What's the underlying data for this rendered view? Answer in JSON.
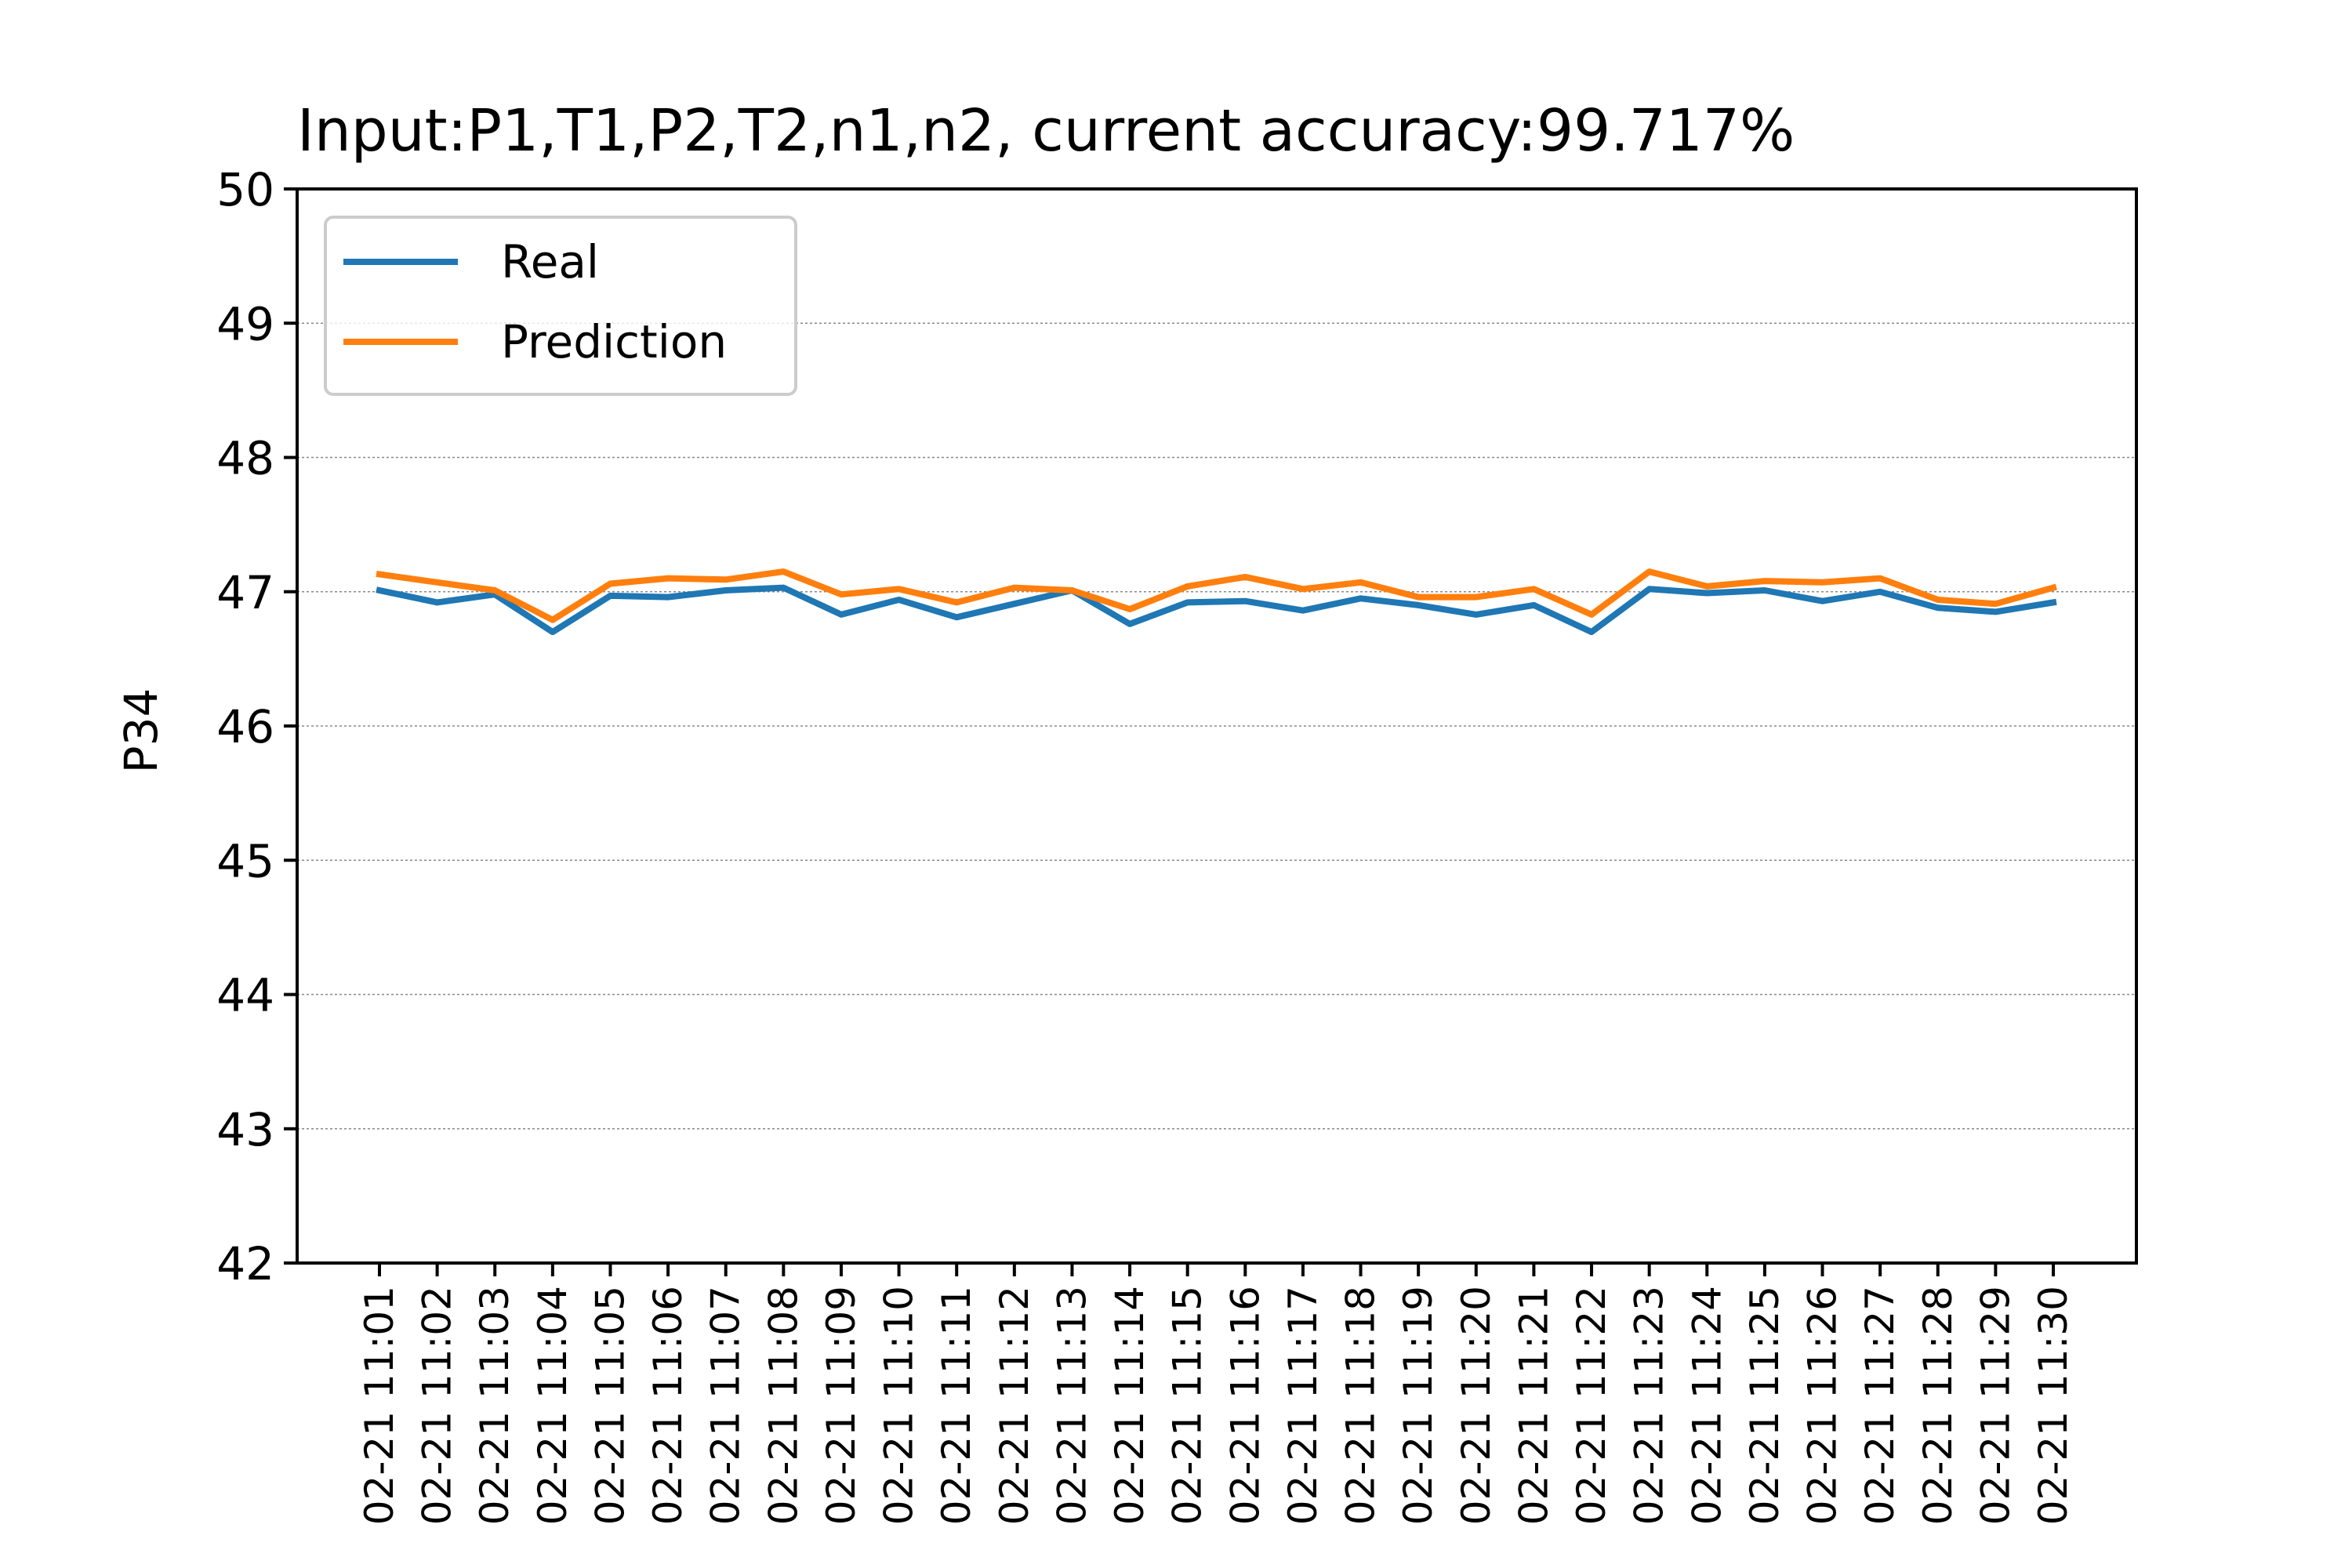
{
  "chart_data": {
    "type": "line",
    "title": "Input:P1,T1,P2,T2,n1,n2, current accuracy:99.717%",
    "xlabel": "",
    "ylabel": "P34",
    "ylim": [
      42,
      50
    ],
    "yticks": [
      "42",
      "43",
      "44",
      "45",
      "46",
      "47",
      "48",
      "49",
      "50"
    ],
    "grid": "horizontal dotted",
    "legend_position": "top-left",
    "categories": [
      "02-21 11:01",
      "02-21 11:02",
      "02-21 11:03",
      "02-21 11:04",
      "02-21 11:05",
      "02-21 11:06",
      "02-21 11:07",
      "02-21 11:08",
      "02-21 11:09",
      "02-21 11:10",
      "02-21 11:11",
      "02-21 11:12",
      "02-21 11:13",
      "02-21 11:14",
      "02-21 11:15",
      "02-21 11:16",
      "02-21 11:17",
      "02-21 11:18",
      "02-21 11:19",
      "02-21 11:20",
      "02-21 11:21",
      "02-21 11:22",
      "02-21 11:23",
      "02-21 11:24",
      "02-21 11:25",
      "02-21 11:26",
      "02-21 11:27",
      "02-21 11:28",
      "02-21 11:29",
      "02-21 11:30"
    ],
    "series": [
      {
        "name": "Real",
        "color": "#1f77b4",
        "values": [
          47.01,
          46.92,
          46.98,
          46.7,
          46.97,
          46.96,
          47.01,
          47.03,
          46.83,
          46.94,
          46.81,
          46.91,
          47.01,
          46.76,
          46.92,
          46.93,
          46.86,
          46.95,
          46.9,
          46.83,
          46.9,
          46.7,
          47.02,
          46.99,
          47.01,
          46.93,
          47.0,
          46.88,
          46.85,
          46.92
        ]
      },
      {
        "name": "Prediction",
        "color": "#ff7f0e",
        "values": [
          47.13,
          47.07,
          47.01,
          46.79,
          47.06,
          47.1,
          47.09,
          47.15,
          46.98,
          47.02,
          46.92,
          47.03,
          47.01,
          46.87,
          47.04,
          47.11,
          47.02,
          47.07,
          46.96,
          46.96,
          47.02,
          46.83,
          47.15,
          47.04,
          47.08,
          47.07,
          47.1,
          46.94,
          46.91,
          47.03
        ]
      }
    ]
  }
}
